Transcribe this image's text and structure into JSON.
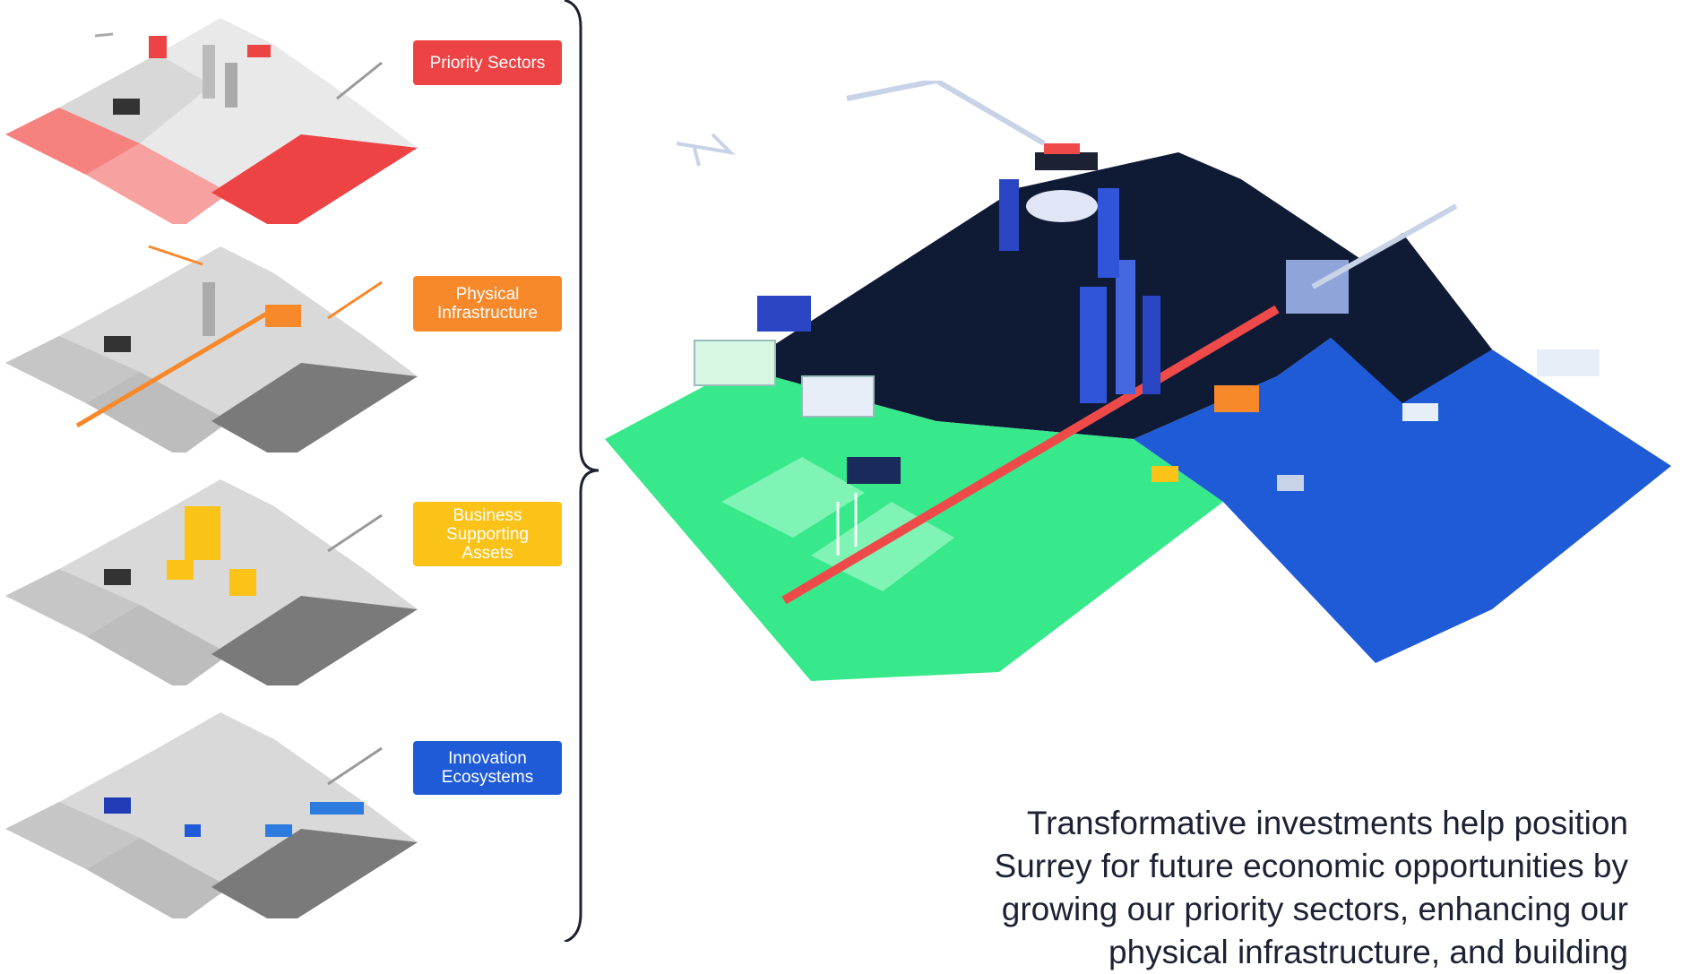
{
  "panels": [
    {
      "label": "Priority Sectors",
      "color": "#ee4344"
    },
    {
      "label": "Physical Infrastructure",
      "color": "#f7892b"
    },
    {
      "label": "Business Supporting Assets",
      "color": "#fbc318"
    },
    {
      "label": "Innovation Ecosystems",
      "color": "#1f5bd6"
    }
  ],
  "map_colors": {
    "green": "#37e98a",
    "navy": "#0f1a35",
    "blue": "#1f5bd6",
    "road": "#ef4a4a"
  },
  "caption_lines": [
    "Transformative investments help position",
    "Surrey for future economic opportunities by",
    "growing our priority sectors, enhancing our",
    "physical infrastructure, and building"
  ]
}
